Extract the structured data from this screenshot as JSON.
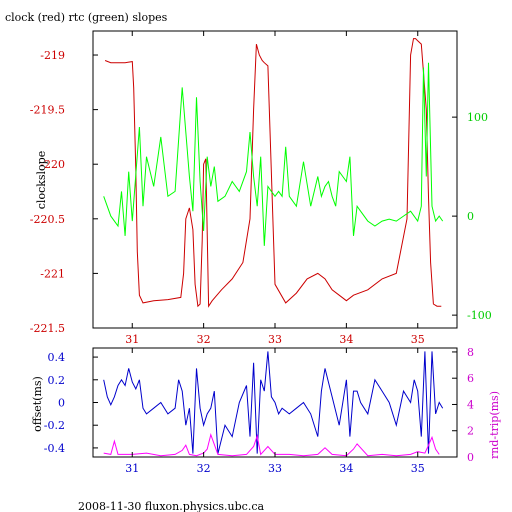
{
  "chart_data": [
    {
      "type": "line",
      "title": "clock (red) rtc (green) slopes",
      "xlabel": "",
      "ylabel": "clockslope",
      "xlim": [
        30.45,
        35.55
      ],
      "xticks": [
        "31",
        "32",
        "33",
        "34",
        "35"
      ],
      "ylim": [
        -221.5,
        -218.78
      ],
      "yticks": [
        "-219",
        "-219.5",
        "-220",
        "-220.5",
        "-221",
        "-221.5"
      ],
      "y2lim": [
        -113,
        187
      ],
      "y2ticks": [
        "100",
        "0",
        "-100"
      ],
      "series": [
        {
          "color": "#cc0000",
          "axis": "left",
          "x": [
            30.62,
            30.7,
            30.9,
            31.0,
            31.02,
            31.05,
            31.07,
            31.1,
            31.15,
            31.3,
            31.5,
            31.68,
            31.72,
            31.75,
            31.8,
            31.85,
            31.88,
            31.92,
            31.95,
            31.98,
            32.0,
            32.03,
            32.07,
            32.12,
            32.25,
            32.4,
            32.55,
            32.65,
            32.7,
            32.74,
            32.78,
            32.82,
            32.85,
            32.9,
            33.0,
            33.15,
            33.3,
            33.45,
            33.6,
            33.7,
            33.8,
            33.9,
            34.0,
            34.1,
            34.3,
            34.5,
            34.7,
            34.85,
            34.9,
            34.94,
            34.97,
            35.0,
            35.05,
            35.12,
            35.15,
            35.18,
            35.22,
            35.27,
            35.33
          ],
          "values": [
            -219.05,
            -219.07,
            -219.07,
            -219.06,
            -219.3,
            -220.05,
            -220.8,
            -221.2,
            -221.27,
            -221.25,
            -221.24,
            -221.22,
            -221.0,
            -220.5,
            -220.4,
            -220.6,
            -221.1,
            -221.3,
            -221.28,
            -220.7,
            -220.0,
            -219.95,
            -221.3,
            -221.25,
            -221.15,
            -221.05,
            -220.9,
            -220.5,
            -219.5,
            -218.9,
            -219.0,
            -219.05,
            -219.07,
            -219.1,
            -221.1,
            -221.27,
            -221.18,
            -221.05,
            -221.0,
            -221.05,
            -221.15,
            -221.2,
            -221.25,
            -221.2,
            -221.15,
            -221.05,
            -221.0,
            -220.5,
            -219.0,
            -218.85,
            -218.85,
            -218.87,
            -218.9,
            -219.5,
            -220.3,
            -220.9,
            -221.28,
            -221.3,
            -221.3
          ]
        },
        {
          "color": "#00ff00",
          "axis": "right",
          "x": [
            30.6,
            30.7,
            30.8,
            30.85,
            30.9,
            30.95,
            31.0,
            31.1,
            31.15,
            31.2,
            31.3,
            31.4,
            31.5,
            31.6,
            31.7,
            31.8,
            31.85,
            31.9,
            31.95,
            32.0,
            32.05,
            32.1,
            32.15,
            32.2,
            32.3,
            32.4,
            32.5,
            32.6,
            32.65,
            32.7,
            32.75,
            32.8,
            32.85,
            32.9,
            32.95,
            33.0,
            33.05,
            33.1,
            33.15,
            33.2,
            33.3,
            33.4,
            33.5,
            33.6,
            33.65,
            33.7,
            33.75,
            33.8,
            33.85,
            33.9,
            34.0,
            34.05,
            34.1,
            34.15,
            34.2,
            34.3,
            34.4,
            34.5,
            34.6,
            34.7,
            34.8,
            34.9,
            35.0,
            35.05,
            35.08,
            35.12,
            35.15,
            35.2,
            35.25,
            35.3,
            35.35
          ],
          "values": [
            20,
            0,
            -10,
            25,
            -20,
            45,
            -5,
            90,
            10,
            60,
            30,
            80,
            20,
            25,
            130,
            40,
            5,
            120,
            35,
            -15,
            60,
            30,
            50,
            15,
            20,
            35,
            25,
            45,
            85,
            40,
            10,
            60,
            -30,
            30,
            25,
            20,
            25,
            20,
            70,
            20,
            10,
            55,
            10,
            40,
            20,
            30,
            35,
            20,
            10,
            45,
            35,
            60,
            -20,
            10,
            5,
            -5,
            -10,
            -5,
            -3,
            -5,
            0,
            5,
            -5,
            10,
            150,
            40,
            155,
            10,
            -5,
            0,
            -5
          ]
        }
      ]
    },
    {
      "type": "line",
      "xlabel": "",
      "ylabel": "offset(ms)",
      "y2label": "rnd-trip(ms)",
      "xlim": [
        30.45,
        35.55
      ],
      "xticks": [
        "31",
        "32",
        "33",
        "34",
        "35"
      ],
      "ylim": [
        -0.48,
        0.48
      ],
      "yticks": [
        "0.4",
        "0.2",
        "0",
        "-0.2",
        "-0.4"
      ],
      "y2lim": [
        0,
        8.3
      ],
      "y2ticks": [
        "8",
        "6",
        "4",
        "2",
        "0"
      ],
      "series": [
        {
          "color": "#0000cc",
          "axis": "left",
          "x": [
            30.6,
            30.65,
            30.7,
            30.75,
            30.8,
            30.85,
            30.9,
            30.95,
            31.0,
            31.05,
            31.1,
            31.15,
            31.2,
            31.3,
            31.4,
            31.5,
            31.6,
            31.65,
            31.7,
            31.75,
            31.8,
            31.85,
            31.9,
            31.95,
            32.0,
            32.05,
            32.1,
            32.15,
            32.2,
            32.3,
            32.4,
            32.5,
            32.6,
            32.65,
            32.7,
            32.75,
            32.8,
            32.85,
            32.9,
            32.95,
            33.0,
            33.05,
            33.1,
            33.2,
            33.3,
            33.4,
            33.5,
            33.6,
            33.65,
            33.7,
            33.8,
            33.9,
            34.0,
            34.05,
            34.1,
            34.15,
            34.2,
            34.3,
            34.4,
            34.5,
            34.6,
            34.7,
            34.8,
            34.9,
            34.95,
            35.0,
            35.05,
            35.1,
            35.15,
            35.2,
            35.25,
            35.3,
            35.35
          ],
          "values": [
            0.2,
            0.05,
            -0.02,
            0.05,
            0.15,
            0.2,
            0.15,
            0.3,
            0.18,
            0.12,
            0.2,
            -0.05,
            -0.1,
            -0.05,
            0.0,
            -0.1,
            -0.05,
            0.2,
            0.1,
            -0.2,
            -0.05,
            -0.45,
            0.3,
            -0.05,
            -0.2,
            -0.1,
            -0.05,
            0.1,
            -0.45,
            -0.2,
            -0.3,
            0.0,
            0.15,
            -0.3,
            0.35,
            -0.45,
            0.2,
            0.1,
            0.45,
            0.05,
            0.0,
            -0.1,
            -0.05,
            -0.1,
            -0.05,
            0.0,
            -0.1,
            -0.3,
            0.1,
            0.3,
            0.05,
            -0.2,
            0.2,
            -0.3,
            0.1,
            0.1,
            0.0,
            -0.1,
            0.2,
            0.1,
            0.0,
            -0.2,
            0.1,
            0.0,
            0.2,
            0.1,
            -0.3,
            0.45,
            -0.45,
            0.45,
            -0.1,
            0.0,
            -0.05
          ]
        },
        {
          "color": "#ff00ff",
          "axis": "right",
          "x": [
            30.6,
            30.7,
            30.75,
            30.8,
            31.0,
            31.2,
            31.4,
            31.6,
            31.7,
            31.75,
            31.8,
            31.9,
            32.0,
            32.05,
            32.1,
            32.2,
            32.4,
            32.6,
            32.7,
            32.75,
            32.8,
            32.9,
            33.0,
            33.2,
            33.4,
            33.6,
            33.7,
            33.8,
            34.0,
            34.1,
            34.15,
            34.3,
            34.5,
            34.7,
            34.9,
            35.0,
            35.1,
            35.15,
            35.2,
            35.25,
            35.3
          ],
          "values": [
            0.3,
            0.2,
            1.2,
            0.2,
            0.2,
            0.3,
            0.1,
            0.2,
            0.5,
            0.9,
            0.2,
            0.1,
            0.3,
            0.6,
            1.7,
            0.2,
            0.1,
            0.2,
            0.8,
            1.6,
            0.2,
            0.8,
            0.2,
            0.2,
            0.1,
            0.2,
            0.7,
            0.2,
            0.1,
            0.6,
            1.0,
            0.1,
            0.2,
            0.1,
            0.2,
            0.4,
            0.3,
            0.9,
            1.5,
            0.6,
            0.2
          ]
        }
      ]
    }
  ],
  "footer": "2008-11-30 fluxon.physics.ubc.ca",
  "colors": {
    "frame": "#000000",
    "red_axis": "#cc0000",
    "green_axis": "#00cc00",
    "blue_axis": "#0000cc",
    "magenta_axis": "#cc00cc"
  }
}
